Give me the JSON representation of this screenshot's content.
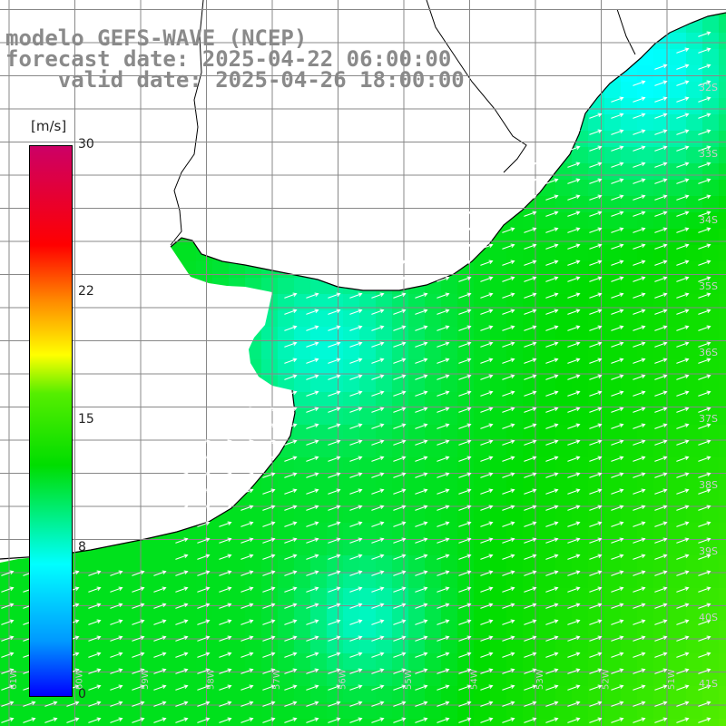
{
  "header": {
    "model_line": "modelo GEFS-WAVE (NCEP)",
    "forecast_line": "forecast date: 2025-04-22 06:00:00",
    "valid_line": "    valid date: 2025-04-26 18:00:00"
  },
  "colorbar": {
    "unit": "[m/s]",
    "min": 0,
    "max": 30,
    "ticks": [
      {
        "value": 30,
        "label": "30"
      },
      {
        "value": 22,
        "label": "22"
      },
      {
        "value": 15,
        "label": "15"
      },
      {
        "value": 8,
        "label": "8"
      },
      {
        "value": 0,
        "label": "0"
      }
    ],
    "colors": [
      "#0000ff",
      "#0099ff",
      "#00ffff",
      "#00dd00",
      "#55ee00",
      "#ffff00",
      "#ff8800",
      "#ff0000",
      "#cc0066"
    ]
  },
  "map": {
    "lon_labels": [
      "61W",
      "60W",
      "59W",
      "58W",
      "57W",
      "56W",
      "55W",
      "54W",
      "53W",
      "52W",
      "51W"
    ],
    "lat_labels": [
      "32S",
      "33S",
      "34S",
      "35S",
      "36S",
      "37S",
      "38S",
      "39S",
      "40S",
      "41S"
    ],
    "land_color": "#ffffff",
    "grid_color": "#888888",
    "arrow_color": "#ffffff",
    "wind_direction_deg_to": 70
  }
}
